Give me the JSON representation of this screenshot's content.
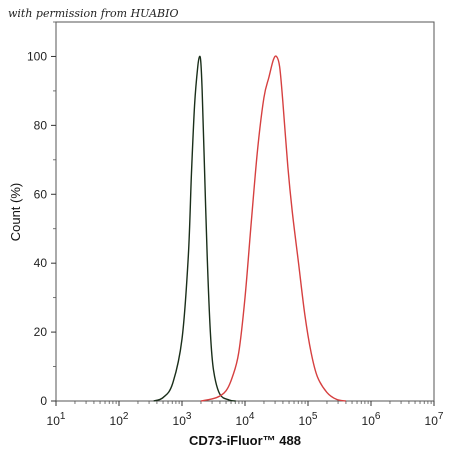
{
  "watermark": "with permission from HUABIO",
  "chart_data": {
    "type": "line",
    "xlabel": "CD73-iFluor™ 488",
    "ylabel": "Count  (%)",
    "x_scale": "log10",
    "xlim_exponent": [
      1,
      7
    ],
    "ylim": [
      0,
      110
    ],
    "x_ticks": [
      {
        "base": "10",
        "exp": "1"
      },
      {
        "base": "10",
        "exp": "2"
      },
      {
        "base": "10",
        "exp": "3"
      },
      {
        "base": "10",
        "exp": "4"
      },
      {
        "base": "10",
        "exp": "5"
      },
      {
        "base": "10",
        "exp": "6"
      },
      {
        "base": "10",
        "exp": "7"
      }
    ],
    "y_ticks": [
      "0",
      "20",
      "40",
      "60",
      "80",
      "100"
    ],
    "grid": false,
    "series": [
      {
        "color": "#1a2e1a",
        "x_log10": [
          2.55,
          2.7,
          2.85,
          3.0,
          3.1,
          3.15,
          3.2,
          3.25,
          3.28,
          3.3,
          3.32,
          3.35,
          3.4,
          3.45,
          3.5,
          3.6,
          3.75,
          3.85
        ],
        "y": [
          0,
          1,
          5,
          18,
          42,
          66,
          86,
          97,
          100,
          98,
          90,
          72,
          42,
          20,
          9,
          2,
          0.3,
          0
        ]
      },
      {
        "color": "#d64040",
        "x_log10": [
          3.3,
          3.55,
          3.7,
          3.8,
          3.9,
          4.0,
          4.1,
          4.2,
          4.3,
          4.38,
          4.45,
          4.5,
          4.55,
          4.6,
          4.68,
          4.75,
          4.85,
          4.95,
          5.05,
          5.15,
          5.3,
          5.45,
          5.6
        ],
        "y": [
          0,
          1,
          3,
          7,
          14,
          30,
          52,
          73,
          88,
          94,
          99,
          100,
          97,
          87,
          68,
          55,
          40,
          25,
          14,
          7,
          2.5,
          0.5,
          0
        ]
      }
    ]
  }
}
